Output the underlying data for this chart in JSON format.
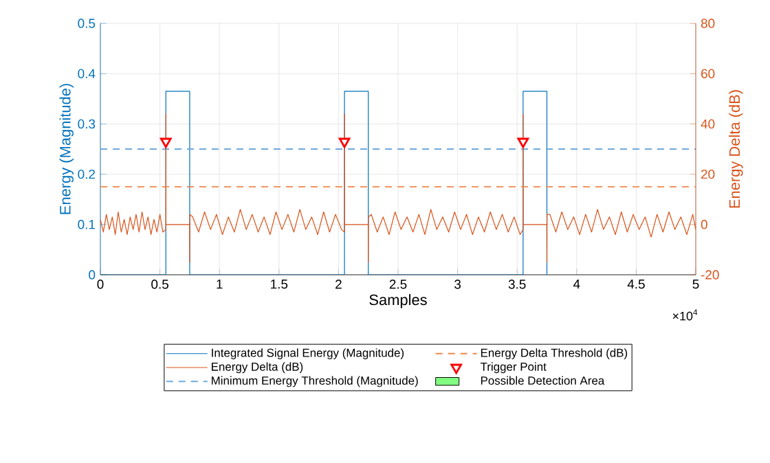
{
  "chart_data": {
    "type": "line",
    "xlabel": "Samples",
    "ylabel": "Energy (Magnitude)",
    "y2label": "Energy Delta (dB)",
    "xlim": [
      0,
      5
    ],
    "ylim": [
      0,
      0.5
    ],
    "y2lim": [
      -20,
      80
    ],
    "xticks": [
      0,
      0.5,
      1,
      1.5,
      2,
      2.5,
      3,
      3.5,
      4,
      4.5,
      5
    ],
    "yticks": [
      0,
      0.1,
      0.2,
      0.3,
      0.4,
      0.5
    ],
    "y2ticks": [
      -20,
      0,
      20,
      40,
      60,
      80
    ],
    "annotations": [
      "×10$^{4}$"
    ],
    "grid": true,
    "legend": "bottom",
    "series": [
      {
        "name": "Integrated Signal Energy (Magnitude)",
        "color": "#0072bd",
        "x": [
          0,
          0.55,
          0.55,
          0.75,
          0.75,
          2.05,
          2.05,
          2.25,
          2.25,
          3.55,
          3.55,
          3.75,
          3.75
        ],
        "values": [
          0,
          0,
          0.365,
          0.365,
          0,
          0,
          0.365,
          0.365,
          0,
          0,
          0.365,
          0.365,
          0
        ]
      },
      {
        "name": "Energy Delta (dB)",
        "color": "#d95319",
        "axis": "y2",
        "x": [
          0,
          0.025,
          0.05,
          0.075,
          0.1,
          0.125,
          0.15,
          0.175,
          0.2,
          0.225,
          0.25,
          0.275,
          0.3,
          0.325,
          0.35,
          0.375,
          0.4,
          0.425,
          0.45,
          0.475,
          0.5,
          0.525,
          0.5499,
          0.55,
          0.551,
          0.749,
          0.75,
          0.751,
          0.775,
          0.825,
          0.875,
          0.925,
          0.975,
          1.025,
          1.075,
          1.125,
          1.175,
          1.225,
          1.275,
          1.325,
          1.375,
          1.425,
          1.475,
          1.525,
          1.575,
          1.625,
          1.675,
          1.725,
          1.775,
          1.825,
          1.875,
          1.925,
          1.975,
          2.025,
          2.0499,
          2.05,
          2.051,
          2.249,
          2.25,
          2.251,
          2.275,
          2.325,
          2.375,
          2.425,
          2.475,
          2.525,
          2.575,
          2.625,
          2.675,
          2.725,
          2.775,
          2.825,
          2.875,
          2.925,
          2.975,
          3.025,
          3.075,
          3.125,
          3.175,
          3.225,
          3.275,
          3.325,
          3.375,
          3.425,
          3.475,
          3.525,
          3.5499,
          3.55,
          3.551,
          3.749,
          3.75,
          3.751,
          3.775,
          3.825,
          3.875,
          3.925,
          3.975,
          4.025,
          4.075,
          4.125,
          4.175,
          4.225,
          4.275,
          4.325,
          4.375,
          4.425,
          4.475,
          4.525,
          4.575,
          4.625,
          4.675,
          4.725,
          4.775,
          4.825,
          4.875,
          4.925,
          4.975,
          5
        ],
        "values": [
          2,
          -3,
          4,
          -2,
          3,
          -4,
          5,
          -3,
          2,
          -4,
          3,
          -2,
          4,
          -3,
          5,
          -2,
          3,
          -4,
          2,
          -3,
          4,
          -3,
          -2,
          44,
          0,
          0,
          -15,
          4,
          3,
          -3,
          5,
          -2,
          4,
          -4,
          3,
          -3,
          6,
          -2,
          4,
          -3,
          3,
          -4,
          5,
          -2,
          4,
          -3,
          6,
          -2,
          3,
          -4,
          5,
          -3,
          4,
          -2,
          -3,
          44,
          0,
          0,
          -15,
          3,
          4,
          -3,
          3,
          -4,
          5,
          -2,
          3,
          -3,
          4,
          -4,
          6,
          -2,
          3,
          -3,
          5,
          -2,
          4,
          -4,
          3,
          -3,
          5,
          -2,
          4,
          -3,
          3,
          -4,
          -2,
          44,
          0,
          0,
          -15,
          4,
          4,
          -3,
          5,
          -2,
          3,
          -4,
          4,
          -3,
          6,
          -2,
          3,
          -4,
          5,
          -3,
          4,
          -2,
          3,
          -5,
          4,
          -3,
          5,
          -2,
          3,
          -4,
          4,
          -2
        ]
      },
      {
        "name": "Trigger Point",
        "type": "scatter",
        "marker": "triangle",
        "color": "#ff0000",
        "axis": "y2",
        "x": [
          0.55,
          2.05,
          3.55
        ],
        "values": [
          33,
          33,
          33
        ]
      },
      {
        "name": "Possible Detection Area",
        "type": "area",
        "color": "#80ff80",
        "values": [
          null
        ]
      }
    ],
    "ref_lines": [
      {
        "axis": "y",
        "value": 0.25,
        "label": "Minimum Energy Threshold (Magnitude)",
        "color": "#6fa8dc",
        "line_style": "dashed"
      },
      {
        "axis": "y2",
        "value": 15,
        "label": "Energy Delta Threshold (dB)",
        "color": "#f0884a",
        "line_style": "dashed"
      }
    ]
  }
}
